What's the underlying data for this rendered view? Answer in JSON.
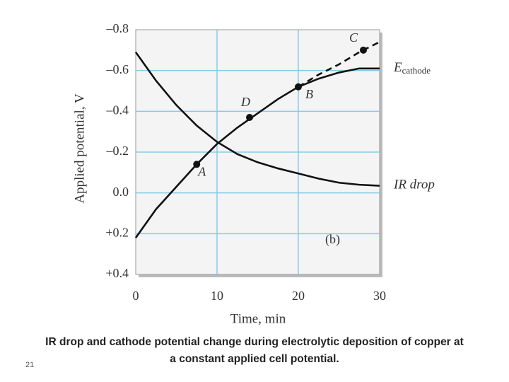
{
  "chart_data": {
    "type": "line",
    "xlabel": "Time, min",
    "ylabel": "Applied potential, V",
    "xlim": [
      0,
      30
    ],
    "xticks": [
      0,
      10,
      20,
      30
    ],
    "ylim": [
      0.4,
      -0.8
    ],
    "yticks": [
      {
        "value": -0.8,
        "label": "–0.8"
      },
      {
        "value": -0.6,
        "label": "–0.6"
      },
      {
        "value": -0.4,
        "label": "–0.4"
      },
      {
        "value": -0.2,
        "label": "–0.2"
      },
      {
        "value": 0,
        "label": "0.0"
      },
      {
        "value": 0.2,
        "label": "+0.2"
      },
      {
        "value": 0.4,
        "label": "+0.4"
      }
    ],
    "grid": true,
    "grid_color": "#86cbe6",
    "series": [
      {
        "name": "E",
        "name_subscript": "cathode",
        "color": "#111111",
        "x": [
          0,
          2.5,
          5,
          7.5,
          10,
          12.5,
          15,
          17.5,
          20,
          22.5,
          25,
          27.5,
          30
        ],
        "values": [
          0.22,
          0.08,
          -0.03,
          -0.14,
          -0.24,
          -0.32,
          -0.39,
          -0.46,
          -0.52,
          -0.56,
          -0.59,
          -0.61,
          -0.61
        ]
      },
      {
        "name": "IR drop",
        "color": "#111111",
        "x": [
          0,
          2.5,
          5,
          7.5,
          10,
          12.5,
          15,
          17.5,
          20,
          22.5,
          25,
          27.5,
          30
        ],
        "values": [
          -0.69,
          -0.55,
          -0.43,
          -0.33,
          -0.25,
          -0.19,
          -0.15,
          -0.12,
          -0.095,
          -0.07,
          -0.05,
          -0.04,
          -0.035
        ]
      },
      {
        "color": "#111111",
        "dashed": true,
        "x": [
          20,
          22.5,
          25,
          27.5,
          30
        ],
        "values": [
          -0.52,
          -0.58,
          -0.63,
          -0.69,
          -0.74
        ]
      }
    ],
    "points": [
      {
        "label": "A",
        "x": 7.5,
        "y": -0.14
      },
      {
        "label": "D",
        "x": 14,
        "y": -0.37
      },
      {
        "label": "B",
        "x": 20,
        "y": -0.52
      },
      {
        "label": "C",
        "x": 28,
        "y": -0.7
      }
    ],
    "annotation": "(b)"
  },
  "caption": "IR drop and cathode potential change during electrolytic deposition of copper at a constant applied cell potential.",
  "slide_number": "21"
}
